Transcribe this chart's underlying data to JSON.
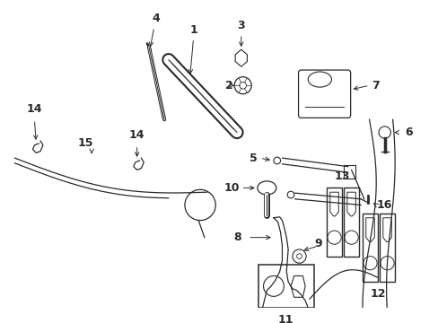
{
  "bg_color": "#ffffff",
  "line_color": "#2a2a2a",
  "fig_width": 4.89,
  "fig_height": 3.6,
  "dpi": 100,
  "lw": 0.9
}
